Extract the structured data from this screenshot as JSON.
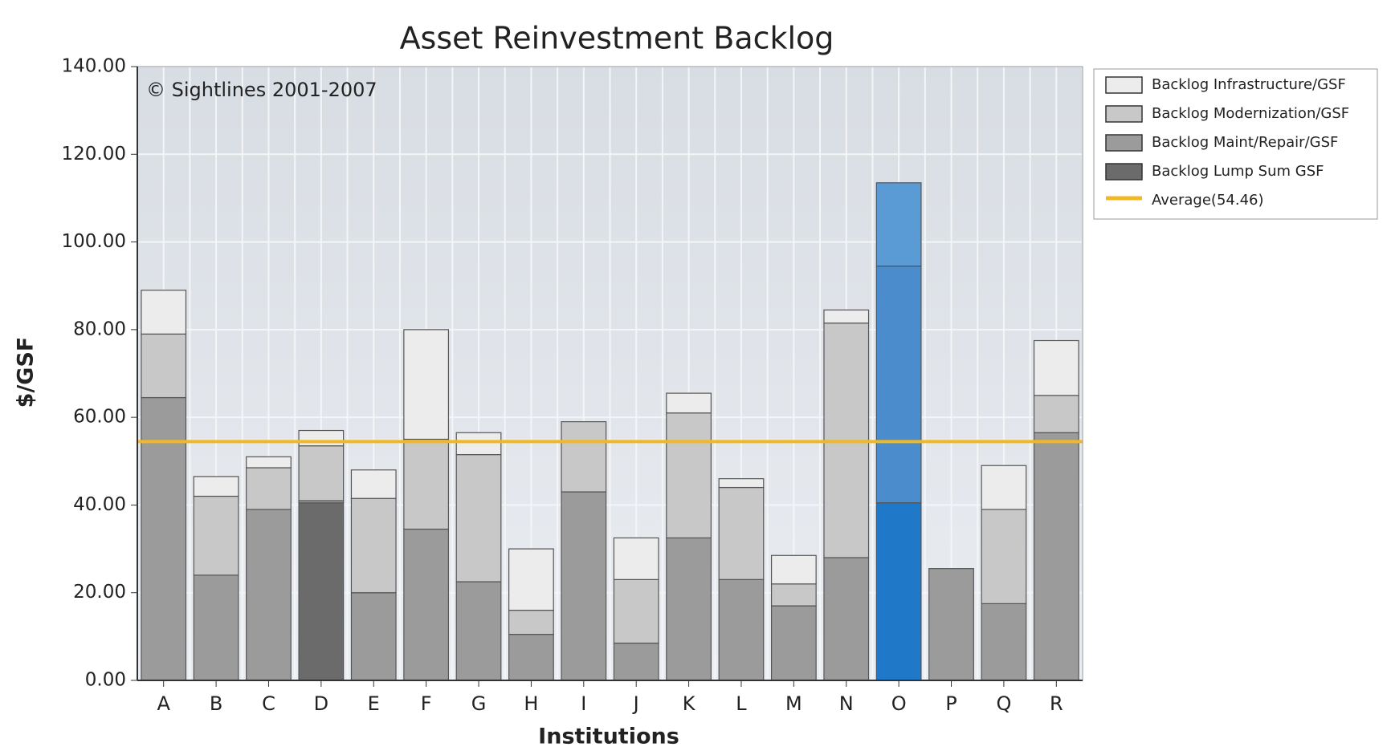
{
  "chart_data": {
    "type": "stacked_bar",
    "title": "Asset Reinvestment Backlog",
    "annotation": "© Sightlines 2001-2007",
    "xlabel": "Institutions",
    "ylabel": "$/GSF",
    "categories": [
      "A",
      "B",
      "C",
      "D",
      "E",
      "F",
      "G",
      "H",
      "I",
      "J",
      "K",
      "L",
      "M",
      "N",
      "O",
      "P",
      "Q",
      "R"
    ],
    "series": [
      {
        "name": "Backlog Lump Sum GSF",
        "color": "#6b6b6b",
        "values": [
          0,
          0,
          0,
          40.5,
          0,
          0,
          0,
          0,
          0,
          0,
          0,
          0,
          0,
          0,
          0,
          0,
          0,
          0
        ]
      },
      {
        "name": "Backlog Maint/Repair/GSF",
        "color": "#9b9b9b",
        "values": [
          64.5,
          24,
          39,
          0.5,
          20,
          34.5,
          22.5,
          10.5,
          43,
          8.5,
          32.5,
          23,
          17,
          28,
          40.5,
          25.5,
          17.5,
          56.5
        ]
      },
      {
        "name": "Backlog Modernization/GSF",
        "color": "#c8c8c8",
        "values": [
          14.5,
          18,
          9.5,
          12.5,
          21.5,
          20.5,
          29,
          5.5,
          16,
          14.5,
          28.5,
          21,
          5,
          53.5,
          54,
          0,
          21.5,
          8.5
        ]
      },
      {
        "name": "Backlog Infrastructure/GSF",
        "color": "#ececec",
        "values": [
          10,
          4.5,
          2.5,
          3.5,
          6.5,
          25,
          5,
          14,
          0,
          9.5,
          4.5,
          2,
          6.5,
          3,
          19,
          0,
          10,
          12.5
        ]
      }
    ],
    "highlight_category": "O",
    "highlight_colors": [
      "#1a70c0",
      "#1f78c8",
      "#4a8ccc",
      "#5b9bd5"
    ],
    "average": {
      "name": "Average(54.46)",
      "value": 54.46,
      "color": "#f2b824"
    },
    "ylim": [
      0,
      140
    ],
    "yticks": [
      {
        "value": 0,
        "label": "0.00"
      },
      {
        "value": 20,
        "label": "20.00"
      },
      {
        "value": 40,
        "label": "40.00"
      },
      {
        "value": 60,
        "label": "60.00"
      },
      {
        "value": 80,
        "label": "80.00"
      },
      {
        "value": 100,
        "label": "100.00"
      },
      {
        "value": 120,
        "label": "120.00"
      },
      {
        "value": 140,
        "label": "140.00"
      }
    ],
    "grid": true,
    "legend": "top-right"
  }
}
